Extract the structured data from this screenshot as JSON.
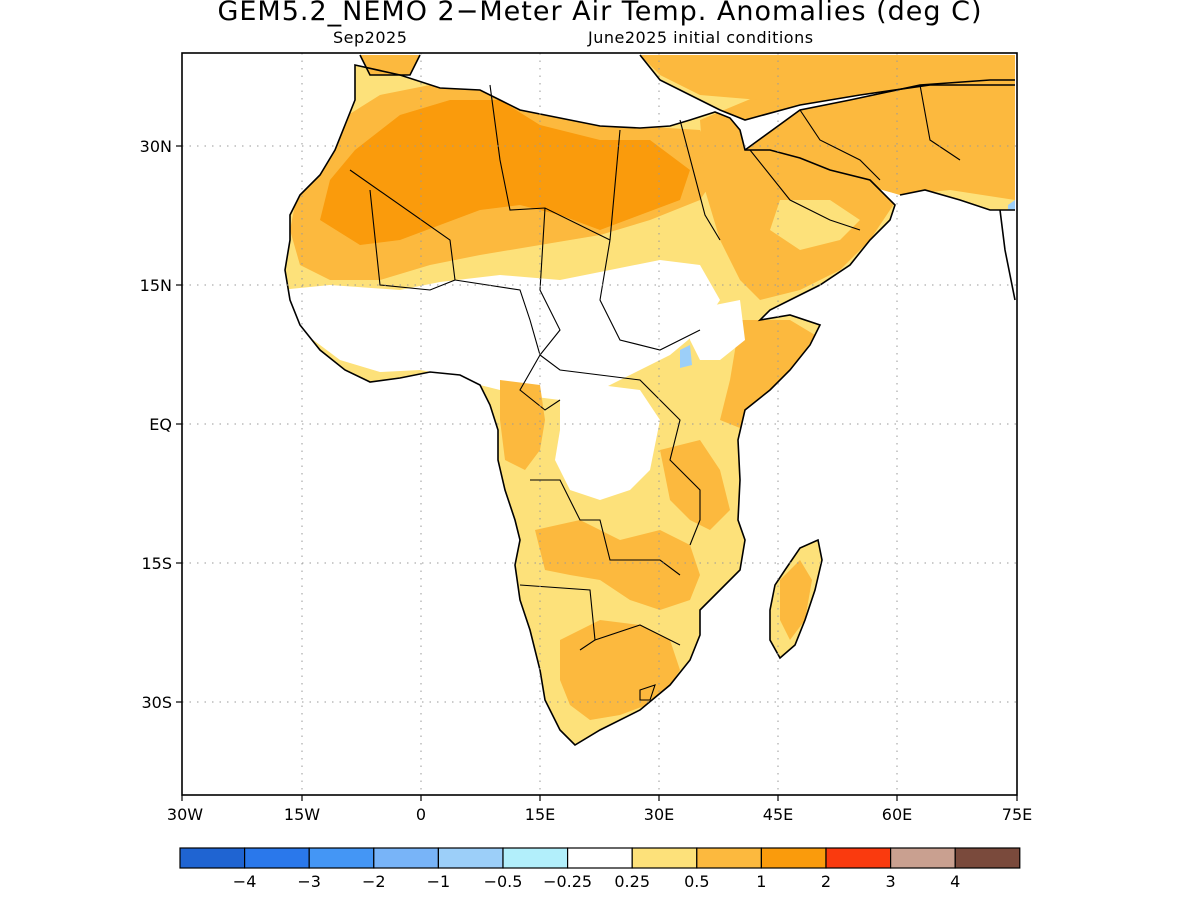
{
  "title": "GEM5.2_NEMO 2−Meter Air Temp. Anomalies (deg C)",
  "subtitle_left": "Sep2025",
  "subtitle_right": "June2025 initial conditions",
  "lat_ticks": [
    {
      "label": "30N",
      "lat": 30
    },
    {
      "label": "15N",
      "lat": 15
    },
    {
      "label": "EQ",
      "lat": 0
    },
    {
      "label": "15S",
      "lat": -15
    },
    {
      "label": "30S",
      "lat": -30
    }
  ],
  "lon_ticks": [
    {
      "label": "30W",
      "lon": -30
    },
    {
      "label": "15W",
      "lon": -15
    },
    {
      "label": "0",
      "lon": 0
    },
    {
      "label": "15E",
      "lon": 15
    },
    {
      "label": "30E",
      "lon": 30
    },
    {
      "label": "45E",
      "lon": 45
    },
    {
      "label": "60E",
      "lon": 60
    },
    {
      "label": "75E",
      "lon": 75
    }
  ],
  "colors": {
    "neg4": "#1f64d2",
    "neg3": "#2a78eb",
    "neg2": "#4496f5",
    "neg1": "#78b4f8",
    "neg05": "#9ccff9",
    "neg025": "#b2effb",
    "neutral": "#ffffff",
    "pos025": "#fde17a",
    "pos05": "#fcb93e",
    "pos1": "#fa9b0c",
    "pos2": "#fa3a0e",
    "pos3": "#c9a090",
    "pos4": "#7a4a3c"
  },
  "colorbar": {
    "swatches": [
      "#1f64d2",
      "#2a78eb",
      "#4496f5",
      "#78b4f8",
      "#9ccff9",
      "#b2effb",
      "#ffffff",
      "#fde17a",
      "#fcb93e",
      "#fa9b0c",
      "#fa3a0e",
      "#c9a090",
      "#7a4a3c"
    ],
    "labels": [
      "−4",
      "−3",
      "−2",
      "−1",
      "−0.5",
      "−0.25",
      "0.25",
      "0.5",
      "1",
      "2",
      "3",
      "4"
    ]
  }
}
